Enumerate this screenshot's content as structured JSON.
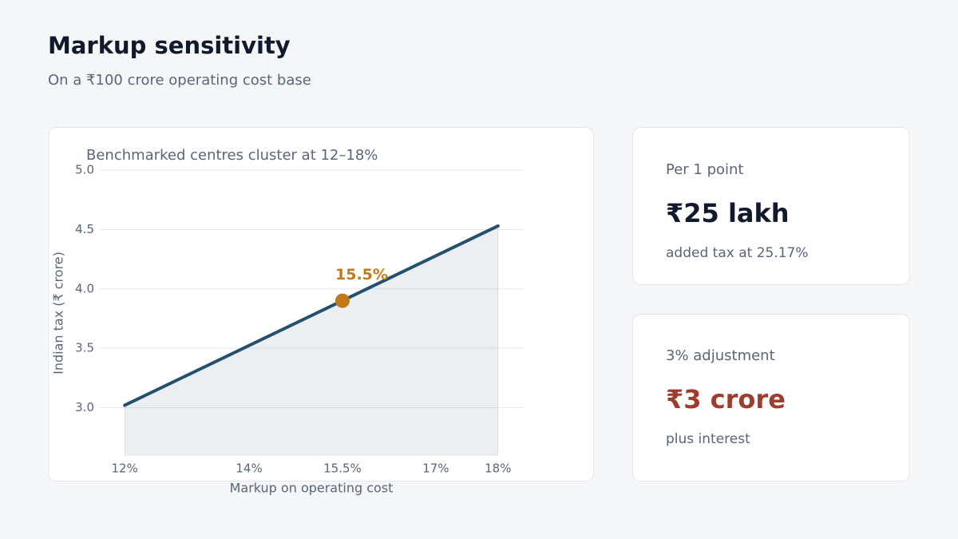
{
  "header": {
    "title": "Markup sensitivity",
    "subtitle": "On a ₹100 crore operating cost base"
  },
  "chart_data": {
    "type": "line",
    "title": "Benchmarked centres cluster at 12–18%",
    "x_label": "Markup on operating cost",
    "y_label": "Indian tax (₹ crore)",
    "x": [
      12,
      18
    ],
    "series": [
      {
        "name": "Indian tax",
        "color": "#24506e",
        "values": [
          3.02,
          4.53
        ]
      }
    ],
    "highlight": {
      "x": 15.5,
      "value": 3.9,
      "label": "15.5%",
      "color": "#c07a1a"
    },
    "xlim": [
      11.6,
      18.4
    ],
    "xticks": [
      {
        "value": 12,
        "label": "12%"
      },
      {
        "value": 14,
        "label": "14%"
      },
      {
        "value": 15.5,
        "label": "15.5%"
      },
      {
        "value": 17,
        "label": "17%"
      },
      {
        "value": 18,
        "label": "18%"
      }
    ],
    "ylim": [
      2.6,
      5.0
    ],
    "yticks": [
      {
        "value": 3,
        "label": "3.0"
      },
      3.5,
      {
        "value": 4,
        "label": "4.0"
      },
      4.5,
      {
        "value": 5,
        "label": "5.0"
      }
    ],
    "grid": true,
    "area": true
  },
  "cards": [
    {
      "label": "Per 1 point",
      "value": "₹25 lakh",
      "note": "added tax at 25.17%",
      "color": "#111a2c"
    },
    {
      "label": "3% adjustment",
      "value": "₹3 crore",
      "note": "plus interest",
      "color": "#9c3d2e"
    }
  ]
}
